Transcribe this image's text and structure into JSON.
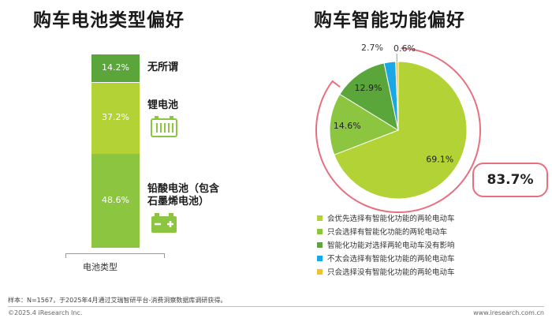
{
  "left_panel": {
    "title": "购车电池类型偏好",
    "x_label": "电池类型",
    "icons": [
      "battery-pack-icon",
      "lead-acid-battery-icon"
    ]
  },
  "right_panel": {
    "title": "购车智能功能偏好",
    "highlight_value": "83.7%"
  },
  "footnote": "样本：N=1567，于2025年4月通过艾瑞智研平台-消费洞察数据库调研获得。",
  "footer": {
    "copyright": "©2025.4 iResearch Inc.",
    "url": "www.iresearch.com.cn"
  },
  "colors": {
    "dark_green": "#5aa63a",
    "light_green": "#b2d235",
    "mid_green": "#8cc640",
    "cyan": "#1aa7e6",
    "yellow": "#f2c12e",
    "highlight_border": "#e8707e"
  },
  "chart_data": [
    {
      "type": "bar",
      "stacked": true,
      "xlabel": "电池类型",
      "categories": [
        "电池类型"
      ],
      "series": [
        {
          "name": "铅酸电池（包含石墨烯电池）",
          "value": 48.6,
          "label": "48.6%",
          "color": "#8cc640"
        },
        {
          "name": "锂电池",
          "value": 37.2,
          "label": "37.2%",
          "color": "#b2d235"
        },
        {
          "name": "无所谓",
          "value": 14.2,
          "label": "14.2%",
          "color": "#5aa63a"
        }
      ],
      "ylim": [
        0,
        100
      ]
    },
    {
      "type": "pie",
      "slices": [
        {
          "name": "会优先选择有智能化功能的两轮电动车",
          "value": 69.1,
          "label": "69.1%",
          "color": "#b2d235"
        },
        {
          "name": "只会选择有智能化功能的两轮电动车",
          "value": 14.6,
          "label": "14.6%",
          "color": "#8cc640"
        },
        {
          "name": "智能化功能对选择两轮电动车没有影响",
          "value": 12.9,
          "label": "12.9%",
          "color": "#5aa63a"
        },
        {
          "name": "不太会选择有智能化功能的两轮电动车",
          "value": 2.7,
          "label": "2.7%",
          "color": "#1aa7e6"
        },
        {
          "name": "只会选择没有智能化功能的两轮电动车",
          "value": 0.6,
          "label": "0.6%",
          "color": "#f2c12e"
        }
      ],
      "highlight": {
        "label": "83.7%",
        "slices": [
          "会优先选择有智能化功能的两轮电动车",
          "只会选择有智能化功能的两轮电动车"
        ]
      }
    }
  ]
}
